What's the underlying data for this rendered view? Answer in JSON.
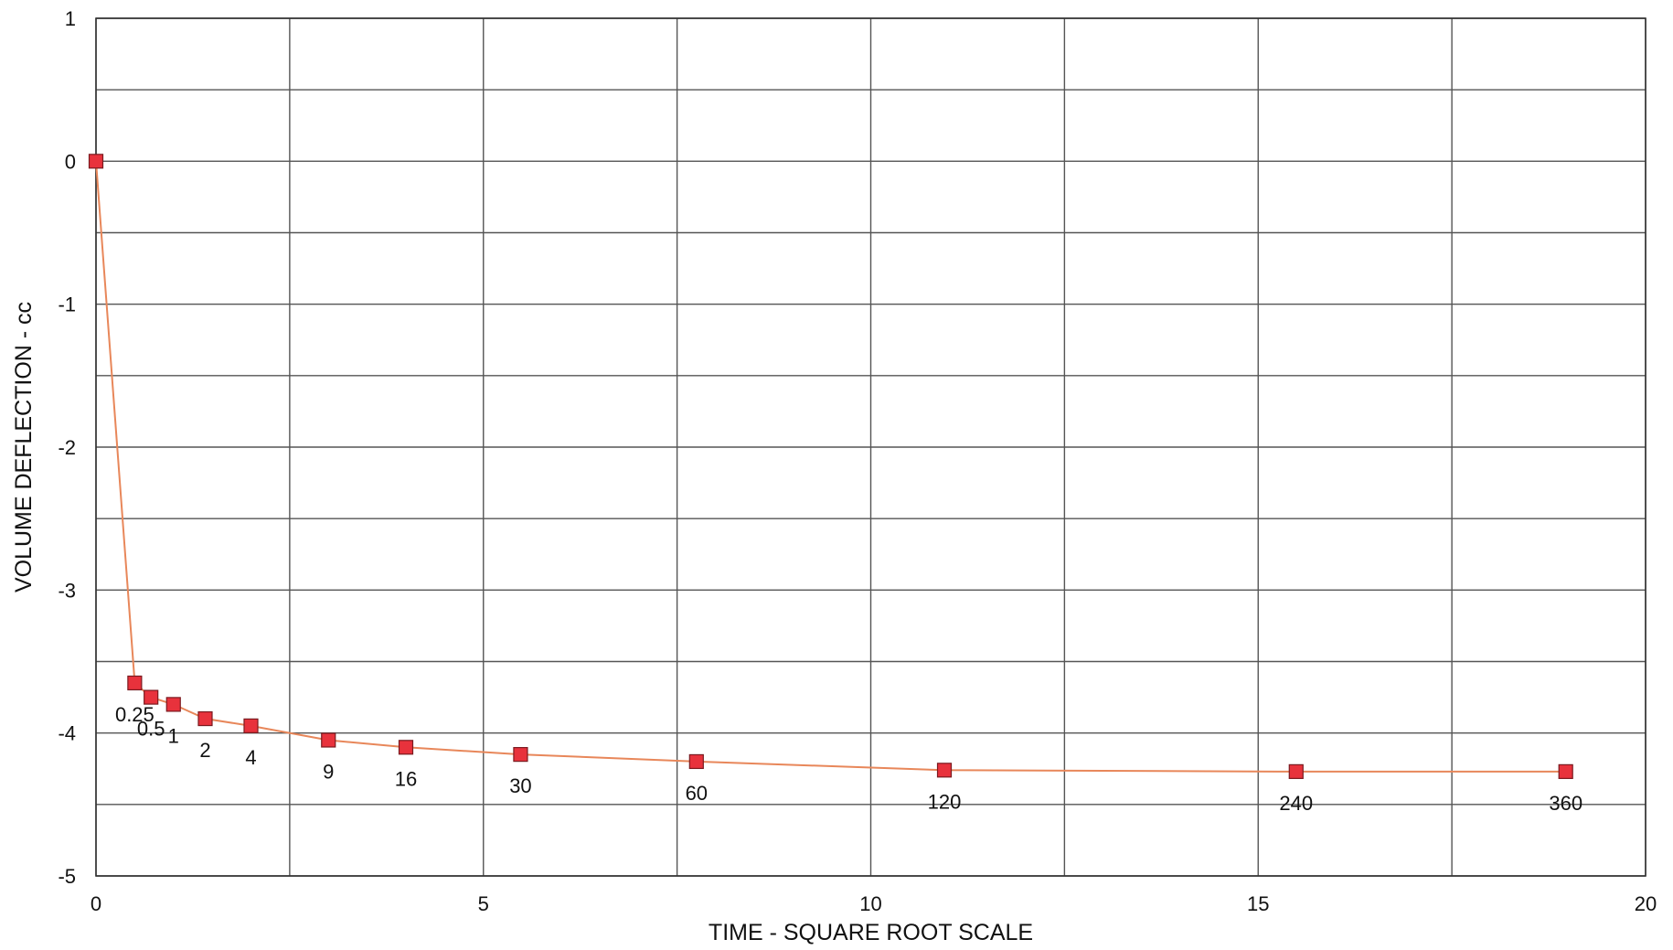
{
  "chart_data": {
    "type": "scatter",
    "title": "",
    "xlabel": "TIME - SQUARE ROOT SCALE",
    "ylabel": "VOLUME DEFLECTION - cc",
    "xlim": [
      0,
      20
    ],
    "ylim": [
      -5,
      1
    ],
    "x_ticks": [
      "0",
      "5",
      "10",
      "15",
      "20"
    ],
    "y_ticks": [
      "1",
      "0",
      "-1",
      "-2",
      "-3",
      "-4",
      "-5"
    ],
    "x_tick_values": [
      0,
      5,
      10,
      15,
      20
    ],
    "y_tick_values": [
      1,
      0,
      -1,
      -2,
      -3,
      -4,
      -5
    ],
    "x_grid_step": 2.5,
    "y_grid_step": 0.5,
    "grid": true,
    "legend": "none",
    "marker_color": "#e8323c",
    "line_color": "#e8875a",
    "series": [
      {
        "points": [
          {
            "label": "",
            "x": 0,
            "y": 0
          },
          {
            "label": "0.25",
            "x": 0.5,
            "y": -3.65
          },
          {
            "label": "0.5",
            "x": 0.71,
            "y": -3.75
          },
          {
            "label": "1",
            "x": 1,
            "y": -3.8
          },
          {
            "label": "2",
            "x": 1.41,
            "y": -3.9
          },
          {
            "label": "4",
            "x": 2,
            "y": -3.95
          },
          {
            "label": "9",
            "x": 3,
            "y": -4.05
          },
          {
            "label": "16",
            "x": 4,
            "y": -4.1
          },
          {
            "label": "30",
            "x": 5.48,
            "y": -4.15
          },
          {
            "label": "60",
            "x": 7.75,
            "y": -4.2
          },
          {
            "label": "120",
            "x": 10.95,
            "y": -4.26
          },
          {
            "label": "240",
            "x": 15.49,
            "y": -4.27
          },
          {
            "label": "360",
            "x": 18.97,
            "y": -4.27
          }
        ]
      }
    ]
  }
}
